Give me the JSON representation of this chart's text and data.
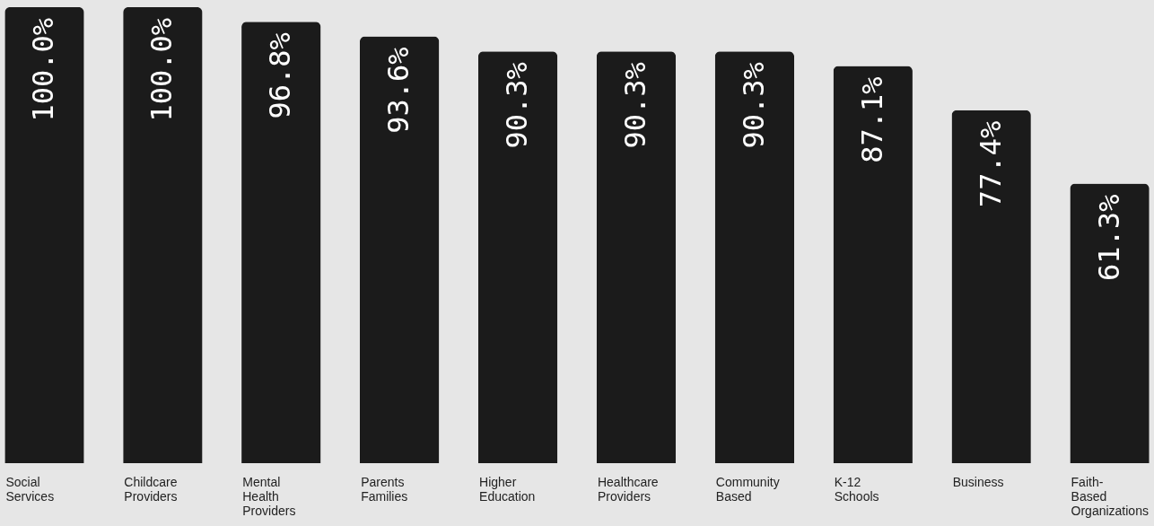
{
  "chart_data": {
    "type": "bar",
    "categories": [
      "Social Services",
      "Childcare Providers",
      "Mental Health Providers",
      "Parents Families",
      "Higher Education",
      "Healthcare Providers",
      "Community Based",
      "K-12 Schools",
      "Business",
      "Faith-Based Organizations"
    ],
    "values": [
      100.0,
      100.0,
      96.8,
      93.6,
      90.3,
      90.3,
      90.3,
      87.1,
      77.4,
      61.3
    ],
    "value_labels": [
      "100.0%",
      "100.0%",
      "96.8%",
      "93.6%",
      "90.3%",
      "90.3%",
      "90.3%",
      "87.1%",
      "77.4%",
      "61.3%"
    ],
    "color": "#1b1b1b"
  }
}
